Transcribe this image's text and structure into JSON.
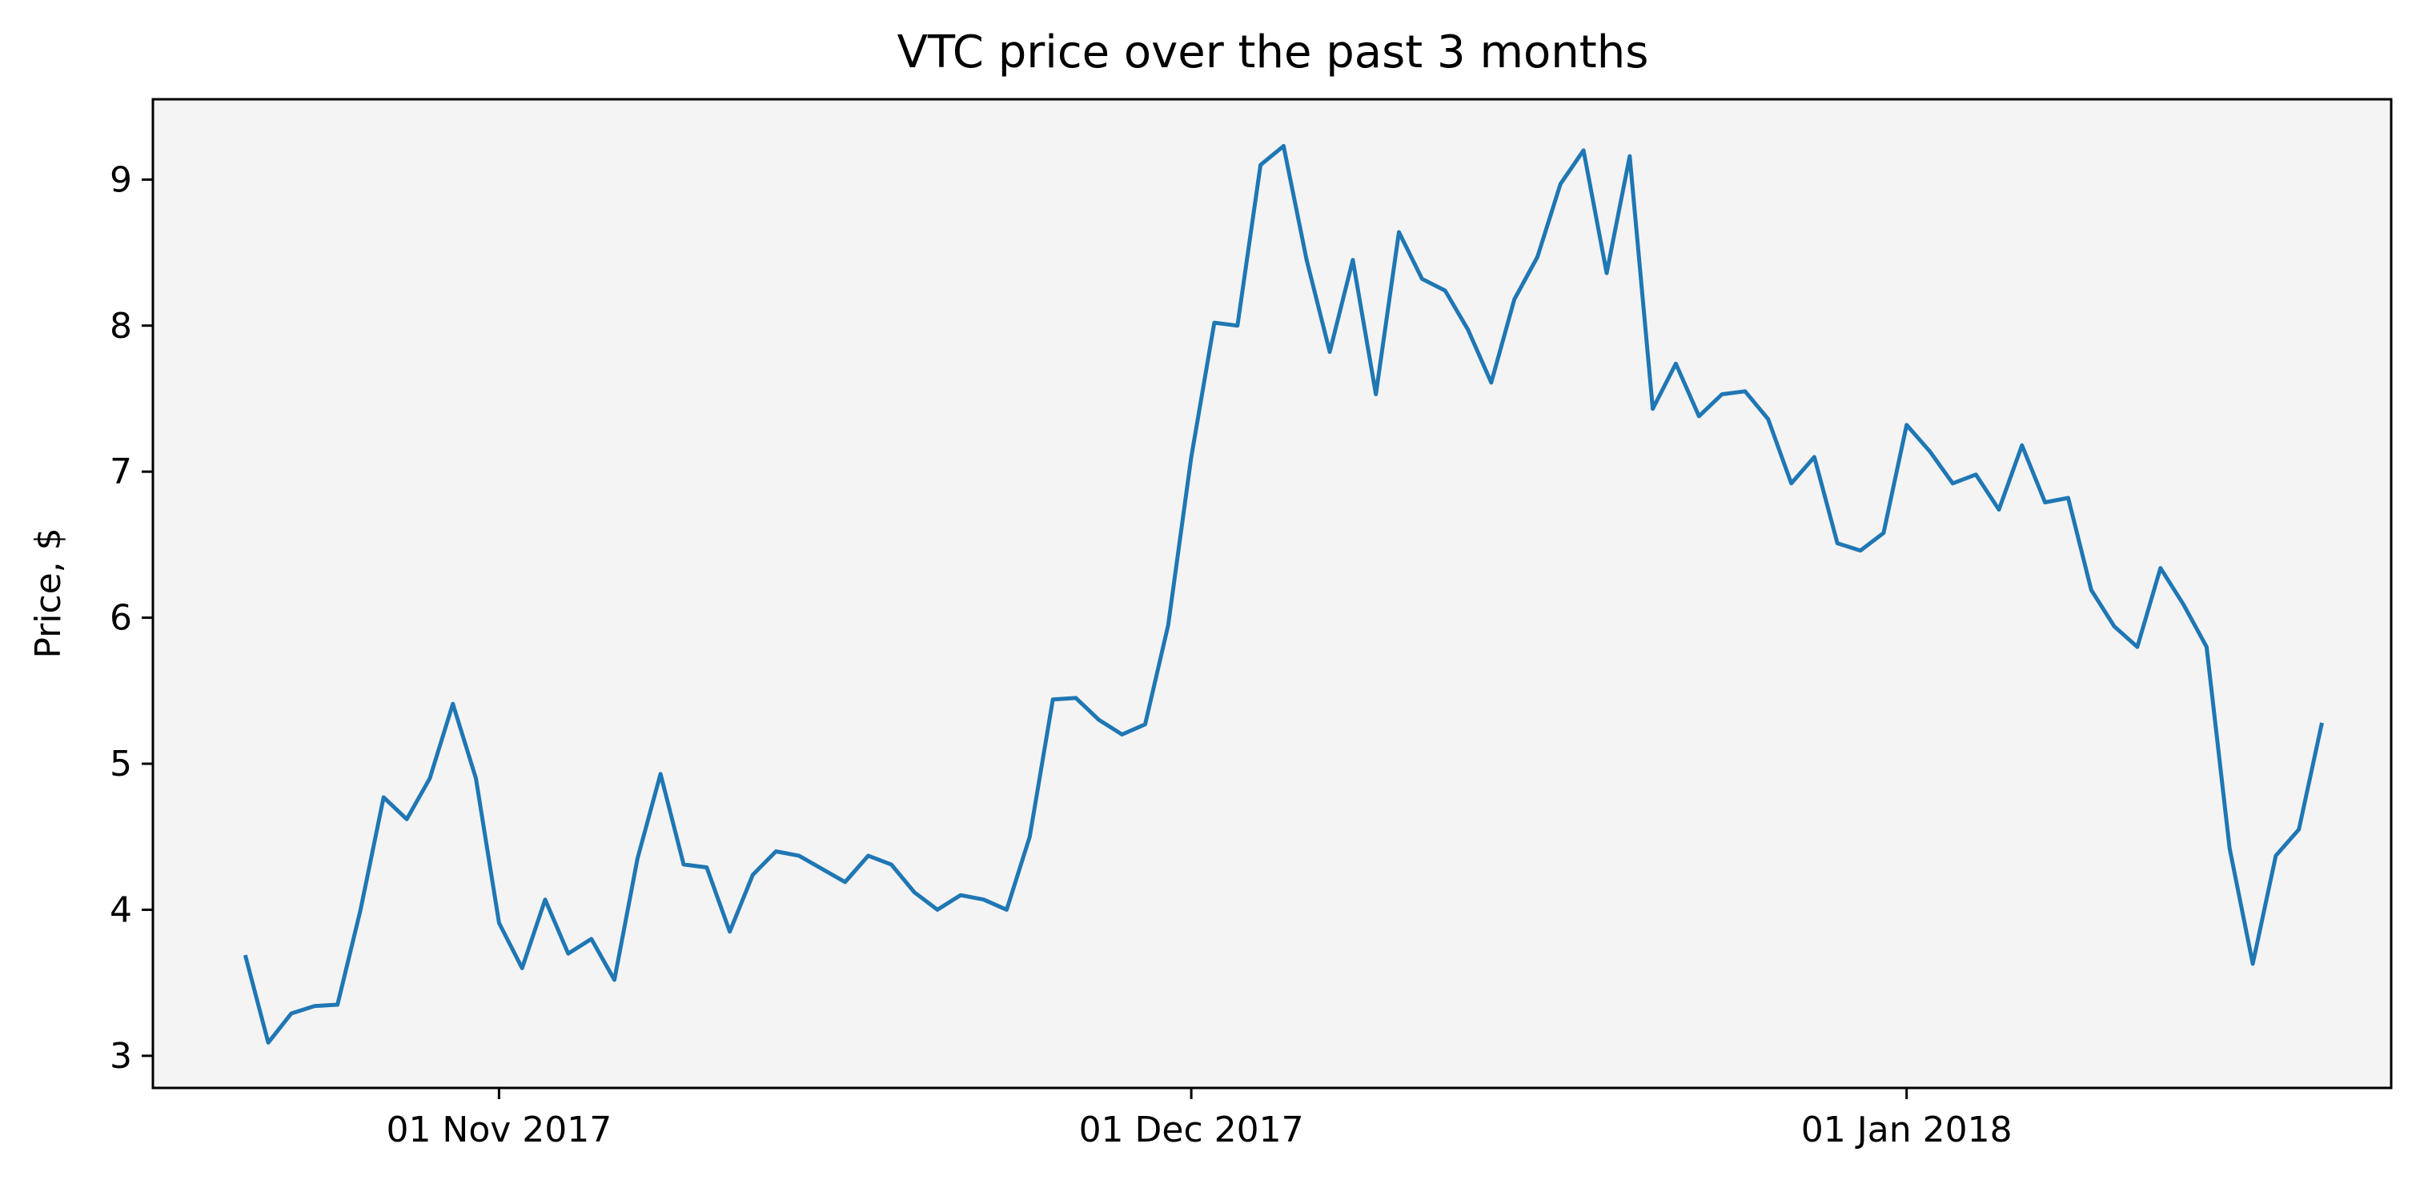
{
  "chart_data": {
    "type": "line",
    "title": "VTC price over the past 3 months",
    "xlabel": "",
    "ylabel": "Price, $",
    "xlim": [
      "2017-10-17",
      "2018-01-22"
    ],
    "ylim": [
      2.78,
      9.55
    ],
    "grid": false,
    "legend": "none",
    "colors": {
      "line": "#1f77b4",
      "plot_background": "#f4f4f4",
      "axes": "#000000"
    },
    "x_ticks": [
      {
        "date": "2017-11-01",
        "label": "01 Nov 2017"
      },
      {
        "date": "2017-12-01",
        "label": "01 Dec 2017"
      },
      {
        "date": "2018-01-01",
        "label": "01 Jan 2018"
      }
    ],
    "y_ticks": [
      3,
      4,
      5,
      6,
      7,
      8,
      9
    ],
    "series": [
      {
        "start_date": "2017-10-21",
        "step_days": 1,
        "values": [
          3.69,
          3.09,
          3.29,
          3.34,
          3.35,
          4.0,
          4.77,
          4.62,
          4.9,
          5.41,
          4.9,
          3.91,
          3.6,
          4.07,
          3.7,
          3.8,
          3.52,
          4.35,
          4.93,
          4.31,
          4.29,
          3.85,
          4.24,
          4.4,
          4.37,
          4.28,
          4.19,
          4.37,
          4.31,
          4.12,
          4.0,
          4.1,
          4.07,
          4.0,
          4.5,
          5.44,
          5.45,
          5.3,
          5.2,
          5.27,
          5.95,
          7.1,
          8.02,
          8.0,
          9.1,
          9.23,
          8.45,
          7.82,
          8.45,
          7.53,
          8.64,
          8.32,
          8.24,
          7.97,
          7.61,
          8.18,
          8.47,
          8.97,
          9.2,
          8.36,
          9.16,
          7.43,
          7.74,
          7.38,
          7.53,
          7.55,
          7.36,
          6.92,
          7.1,
          6.51,
          6.46,
          6.58,
          7.32,
          7.14,
          6.92,
          6.98,
          6.74,
          7.18,
          6.79,
          6.82,
          6.19,
          5.94,
          5.8,
          6.34,
          6.09,
          5.8,
          4.42,
          3.63,
          4.37,
          4.55,
          5.28
        ]
      }
    ]
  }
}
